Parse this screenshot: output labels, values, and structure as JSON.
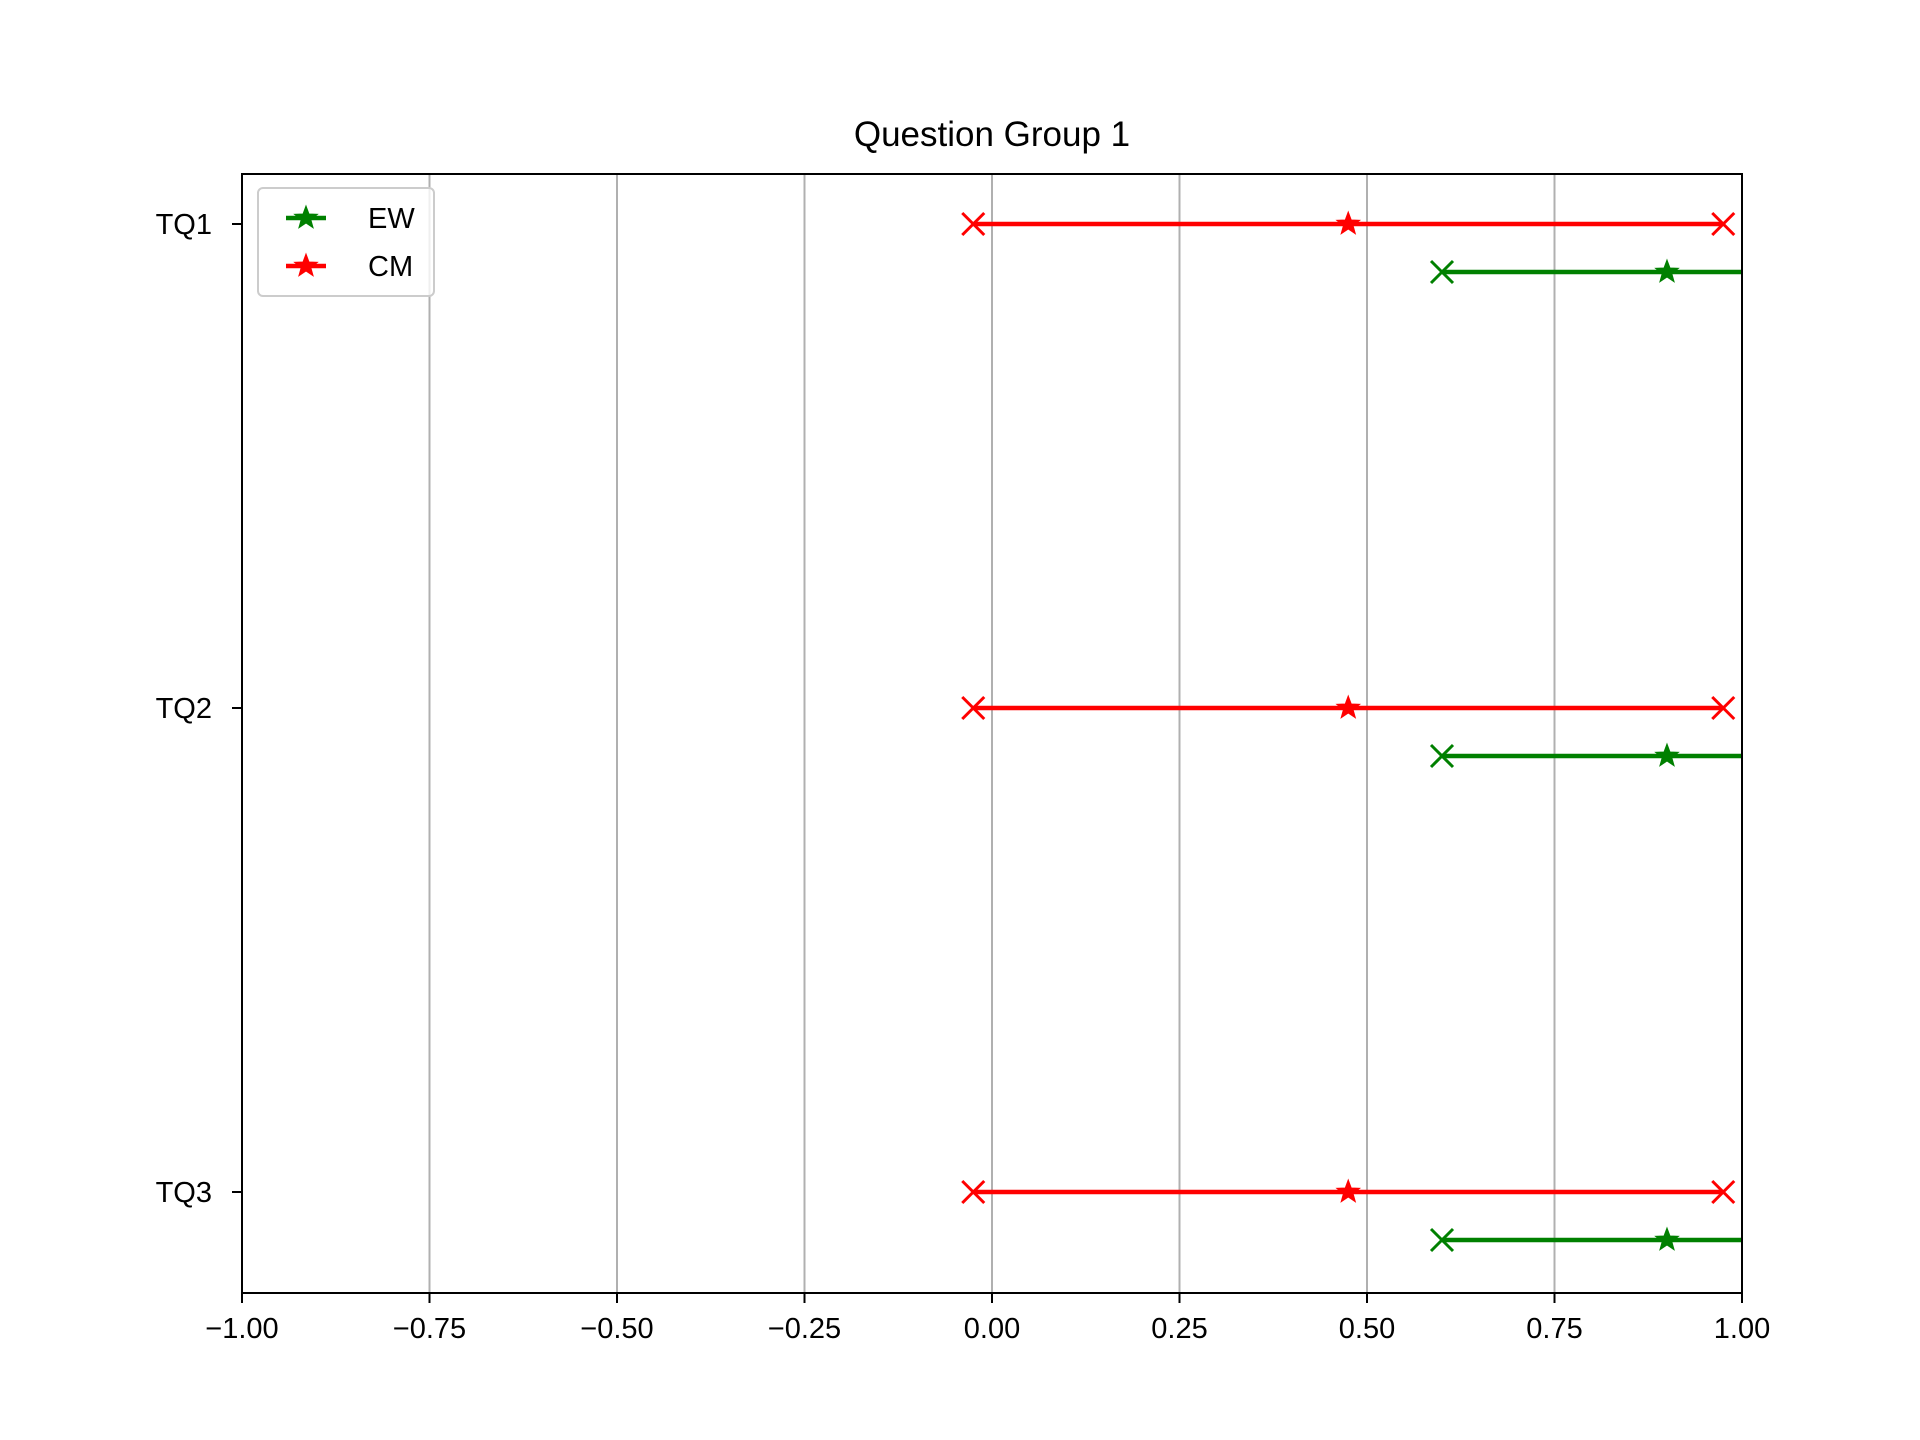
{
  "chart_data": {
    "type": "interval",
    "title": "Question Group 1",
    "xlabel": "",
    "ylabel": "",
    "xlim": [
      -1.0,
      1.0
    ],
    "xticks": [
      -1.0,
      -0.75,
      -0.5,
      -0.25,
      0.0,
      0.25,
      0.5,
      0.75,
      1.0
    ],
    "xtick_labels": [
      "−1.00",
      "−0.75",
      "−0.50",
      "−0.25",
      "0.00",
      "0.25",
      "0.50",
      "0.75",
      "1.00"
    ],
    "categories": [
      "TQ1",
      "TQ2",
      "TQ3"
    ],
    "grid": "vertical",
    "legend_position": "top-left",
    "series": [
      {
        "name": "EW",
        "color": "#008000",
        "marker": "star",
        "end_marker": "x",
        "points": [
          {
            "category": "TQ1",
            "low": 0.6,
            "mid": 0.9,
            "high": 1.0
          },
          {
            "category": "TQ2",
            "low": 0.6,
            "mid": 0.9,
            "high": 1.0
          },
          {
            "category": "TQ3",
            "low": 0.6,
            "mid": 0.9,
            "high": 1.0
          }
        ]
      },
      {
        "name": "CM",
        "color": "#ff0000",
        "marker": "star",
        "end_marker": "x",
        "points": [
          {
            "category": "TQ1",
            "low": -0.025,
            "mid": 0.475,
            "high": 0.975
          },
          {
            "category": "TQ2",
            "low": -0.025,
            "mid": 0.475,
            "high": 0.975
          },
          {
            "category": "TQ3",
            "low": -0.025,
            "mid": 0.475,
            "high": 0.975
          }
        ]
      }
    ]
  }
}
